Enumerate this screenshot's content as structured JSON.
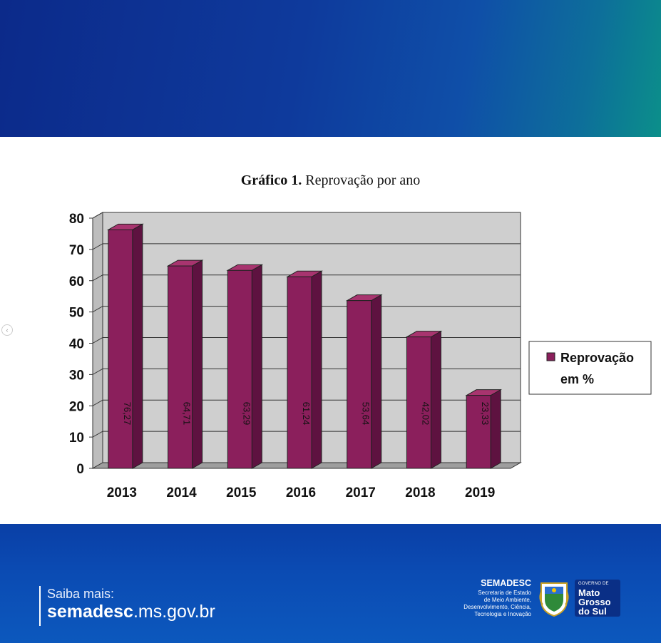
{
  "header": {
    "brand_color": "#0c2a8a"
  },
  "chart_title": {
    "bold": "Gráfico 1.",
    "rest": " Reprovação por ano"
  },
  "chart_data": {
    "type": "bar",
    "title": "Gráfico 1. Reprovação por ano",
    "categories": [
      "2013",
      "2014",
      "2015",
      "2016",
      "2017",
      "2018",
      "2019"
    ],
    "series": [
      {
        "name": "Reprovação em %",
        "values": [
          76.27,
          64.71,
          63.29,
          61.24,
          53.64,
          42.02,
          23.33
        ]
      }
    ],
    "value_labels": [
      "76,27",
      "64,71",
      "63,29",
      "61,24",
      "53,64",
      "42,02",
      "23,33"
    ],
    "y_ticks": [
      "0",
      "10",
      "20",
      "30",
      "40",
      "50",
      "60",
      "70",
      "80"
    ],
    "ylim": [
      0,
      80
    ],
    "grid": true,
    "legend": {
      "line1": "Reprovação",
      "line2": "em %",
      "position": "right"
    },
    "bar_color": "#8b1f5c",
    "plot_bg": "#cfcfcf"
  },
  "footer": {
    "saiba": "Saiba mais:",
    "url_bold": "semadesc",
    "url_rest": ".ms.gov.br",
    "org_name": "SEMADESC",
    "org_desc": [
      "Secretaria de Estado",
      "de Meio Ambiente,",
      "Desenvolvimento, Ciência,",
      "Tecnologia e Inovação"
    ],
    "gov_small": "GOVERNO DE",
    "gov_big": [
      "Mato",
      "Grosso",
      "do Sul"
    ]
  }
}
